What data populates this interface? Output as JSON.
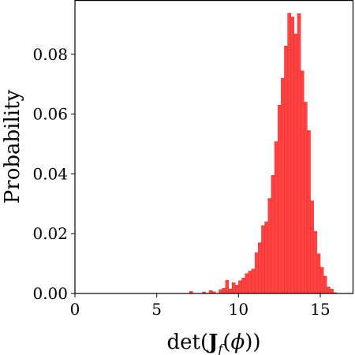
{
  "chart_data": {
    "type": "bar",
    "style": "histogram",
    "xlabel": "det(J_f(ϕ))",
    "ylabel": "Probability",
    "xlim": [
      0,
      17
    ],
    "ylim": [
      0,
      0.098
    ],
    "xticks": [
      0,
      5,
      10,
      15
    ],
    "xtick_labels": [
      "0",
      "5",
      "10",
      "15"
    ],
    "yticks": [
      0,
      0.02,
      0.04,
      0.06,
      0.08
    ],
    "ytick_labels": [
      "0.00",
      "0.02",
      "0.04",
      "0.06",
      "0.08"
    ],
    "bar_color": "#ff3333",
    "bin_width": 0.2,
    "grid": false,
    "bins": [
      {
        "x": 7.1,
        "y": 0.0007
      },
      {
        "x": 7.9,
        "y": 0.0005
      },
      {
        "x": 8.3,
        "y": 0.001
      },
      {
        "x": 8.5,
        "y": 0.0006
      },
      {
        "x": 8.9,
        "y": 0.0013
      },
      {
        "x": 9.1,
        "y": 0.0018
      },
      {
        "x": 9.3,
        "y": 0.0044
      },
      {
        "x": 9.5,
        "y": 0.0015
      },
      {
        "x": 9.7,
        "y": 0.0036
      },
      {
        "x": 9.9,
        "y": 0.0028
      },
      {
        "x": 10.1,
        "y": 0.0043
      },
      {
        "x": 10.3,
        "y": 0.0052
      },
      {
        "x": 10.5,
        "y": 0.0067
      },
      {
        "x": 10.7,
        "y": 0.0075
      },
      {
        "x": 10.9,
        "y": 0.0082
      },
      {
        "x": 11.1,
        "y": 0.0137
      },
      {
        "x": 11.3,
        "y": 0.017
      },
      {
        "x": 11.5,
        "y": 0.0227
      },
      {
        "x": 11.7,
        "y": 0.024
      },
      {
        "x": 11.9,
        "y": 0.0318
      },
      {
        "x": 12.1,
        "y": 0.0395
      },
      {
        "x": 12.3,
        "y": 0.0508
      },
      {
        "x": 12.5,
        "y": 0.063
      },
      {
        "x": 12.7,
        "y": 0.072
      },
      {
        "x": 12.9,
        "y": 0.0828
      },
      {
        "x": 13.1,
        "y": 0.0938
      },
      {
        "x": 13.3,
        "y": 0.0925
      },
      {
        "x": 13.5,
        "y": 0.0868
      },
      {
        "x": 13.7,
        "y": 0.0936
      },
      {
        "x": 13.9,
        "y": 0.0745
      },
      {
        "x": 14.1,
        "y": 0.064
      },
      {
        "x": 14.3,
        "y": 0.0545
      },
      {
        "x": 14.5,
        "y": 0.031
      },
      {
        "x": 14.7,
        "y": 0.0208
      },
      {
        "x": 14.9,
        "y": 0.0133
      },
      {
        "x": 15.1,
        "y": 0.0088
      },
      {
        "x": 15.3,
        "y": 0.0058
      },
      {
        "x": 15.5,
        "y": 0.0022
      },
      {
        "x": 15.7,
        "y": 0.0015
      },
      {
        "x": 15.9,
        "y": 0.0003
      }
    ]
  }
}
